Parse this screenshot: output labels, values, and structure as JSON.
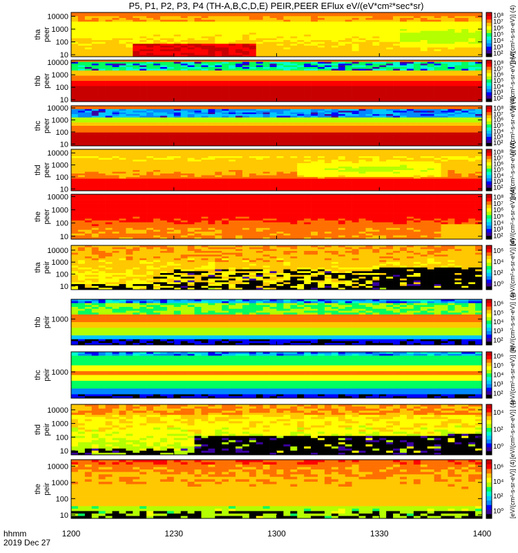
{
  "figure": {
    "title": "P5, P1, P2, P3, P4 (TH-A,B,C,D,E) PEIR,PEER EFlux eV/(eV*cm²*sec*sr)",
    "x_label_line1": "hhmm",
    "x_label_line2": "2019 Dec 27"
  },
  "colors": {
    "colormap": [
      "#000000",
      "#3a00a0",
      "#0000ff",
      "#0088ff",
      "#00c8ff",
      "#00ffd0",
      "#00ff60",
      "#b4ff00",
      "#ffff00",
      "#ffc800",
      "#ff7000",
      "#ff0000",
      "#c80000"
    ]
  },
  "chart_data": [
    {
      "type": "heatmap",
      "probe": "tha",
      "species": "peer",
      "ylabel": [
        "tha",
        "peer"
      ],
      "yscale": "log",
      "ylim": [
        7,
        20000
      ],
      "yticks": [
        "10",
        "100",
        "1000",
        "10000"
      ],
      "colorbar": {
        "label": "[eV/(cm²-s-sr-eV)] (4)",
        "ticks": [
          "10²",
          "10³",
          "10⁴",
          "10⁵",
          "10⁶",
          "10⁷",
          "10⁸"
        ]
      }
    },
    {
      "type": "heatmap",
      "probe": "thb",
      "species": "peer",
      "ylabel": [
        "thb",
        "peer"
      ],
      "yscale": "log",
      "ylim": [
        7,
        15000
      ],
      "yticks": [
        "10",
        "100",
        "1000",
        "10000"
      ],
      "colorbar": {
        "label": "[eV/(cm²-s-sr-eV)] (4)",
        "ticks": [
          "10²",
          "10³",
          "10⁴",
          "10⁵",
          "10⁶",
          "10⁷",
          "10⁸"
        ]
      }
    },
    {
      "type": "heatmap",
      "probe": "thc",
      "species": "peer",
      "ylabel": [
        "thc",
        "peer"
      ],
      "yscale": "log",
      "ylim": [
        7,
        15000
      ],
      "yticks": [
        "10",
        "100",
        "1000",
        "10000"
      ],
      "colorbar": {
        "label": "[eV/(cm²-s-sr-eV)] (4)",
        "ticks": [
          "10²",
          "10³",
          "10⁴",
          "10⁵",
          "10⁶",
          "10⁷",
          "10⁸"
        ]
      }
    },
    {
      "type": "heatmap",
      "probe": "thd",
      "species": "peer",
      "ylabel": [
        "thd",
        "peer"
      ],
      "yscale": "log",
      "ylim": [
        7,
        20000
      ],
      "yticks": [
        "10",
        "100",
        "1000",
        "10000"
      ],
      "colorbar": {
        "label": "[eV/(cm²-s-sr-eV)] (4)",
        "ticks": [
          "10²",
          "10³",
          "10⁴",
          "10⁵",
          "10⁶",
          "10⁷",
          "10⁸"
        ]
      }
    },
    {
      "type": "heatmap",
      "probe": "the",
      "species": "peer",
      "ylabel": [
        "the",
        "peer"
      ],
      "yscale": "log",
      "ylim": [
        6,
        15000
      ],
      "yticks": [
        "10",
        "100",
        "1000",
        "10000"
      ],
      "colorbar": {
        "label": "[eV/(cm²-s-sr-eV)] (4)",
        "ticks": [
          "10²",
          "10³",
          "10⁴",
          "10⁵",
          "10⁶",
          "10⁷",
          "10⁸"
        ]
      }
    },
    {
      "type": "heatmap",
      "probe": "tha",
      "species": "peir",
      "ylabel": [
        "tha",
        "peir"
      ],
      "yscale": "log",
      "ylim": [
        5,
        25000
      ],
      "yticks": [
        "10",
        "100",
        "1000",
        "10000"
      ],
      "colorbar": {
        "label": "[eV/(cm²-s-sr-eV)] (4)",
        "ticks": [
          "10⁰",
          "10²",
          "10⁴",
          "10⁶"
        ]
      }
    },
    {
      "type": "heatmap",
      "probe": "thb",
      "species": "peir",
      "ylabel": [
        "thb",
        "peir"
      ],
      "yscale": "log",
      "ylim": [
        8,
        40000
      ],
      "yticks": [
        "1000"
      ],
      "colorbar": {
        "label": "[eV/(cm²-s-sr-eV)] (4)",
        "ticks": [
          "10²",
          "10³",
          "10⁴",
          "10⁵",
          "10⁶"
        ]
      }
    },
    {
      "type": "heatmap",
      "probe": "thc",
      "species": "peir",
      "ylabel": [
        "thc",
        "peir"
      ],
      "yscale": "log",
      "ylim": [
        8,
        40000
      ],
      "yticks": [
        "1000"
      ],
      "colorbar": {
        "label": "[eV/(cm²-s-sr-eV)] (4)",
        "ticks": [
          "10²",
          "10³",
          "10⁴",
          "10⁵",
          "10⁶"
        ]
      }
    },
    {
      "type": "heatmap",
      "probe": "thd",
      "species": "peir",
      "ylabel": [
        "thd",
        "peir"
      ],
      "yscale": "log",
      "ylim": [
        5,
        25000
      ],
      "yticks": [
        "10",
        "100",
        "1000",
        "10000"
      ],
      "colorbar": {
        "label": "[eV/(cm²-s-sr-eV)] (4)",
        "ticks": [
          "10⁰",
          "10²",
          "10⁴"
        ]
      }
    },
    {
      "type": "heatmap",
      "probe": "the",
      "species": "peir",
      "ylabel": [
        "the",
        "peir"
      ],
      "yscale": "log",
      "ylim": [
        6,
        25000
      ],
      "yticks": [
        "10",
        "100",
        "1000",
        "10000"
      ],
      "colorbar": {
        "label": "[eV/(cm²-s-sr-eV)] (4)",
        "ticks": [
          "10⁰",
          "10²",
          "10⁴",
          "10⁶"
        ]
      }
    }
  ],
  "x_axis": {
    "range": [
      "12:00",
      "14:00"
    ],
    "ticks": [
      {
        "label": "1200",
        "minutes": 0
      },
      {
        "label": "1230",
        "minutes": 30
      },
      {
        "label": "1300",
        "minutes": 60
      },
      {
        "label": "1330",
        "minutes": 90
      },
      {
        "label": "1400",
        "minutes": 120
      }
    ]
  }
}
